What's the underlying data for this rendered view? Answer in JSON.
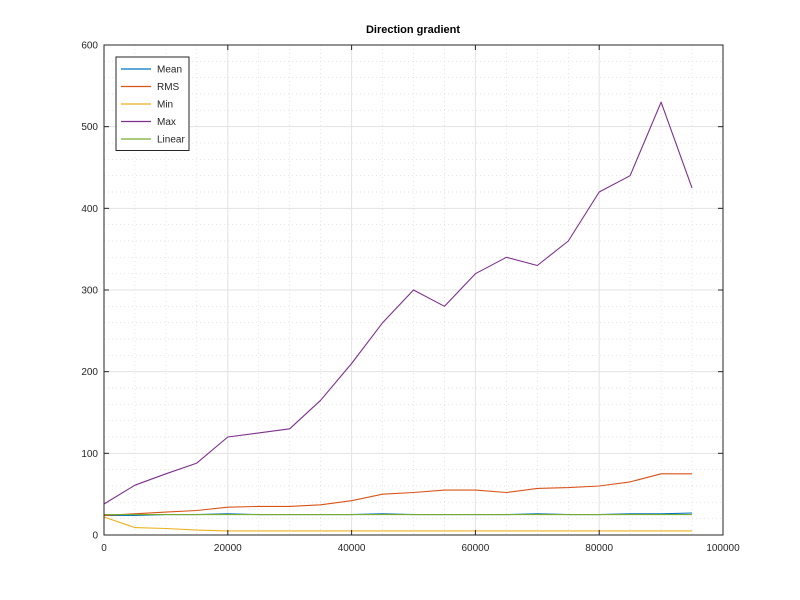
{
  "chart_data": {
    "type": "line",
    "title": "Direction gradient",
    "xlabel": "",
    "ylabel": "",
    "xlim": [
      0,
      100000
    ],
    "ylim": [
      0,
      600
    ],
    "x_ticks": [
      0,
      20000,
      40000,
      60000,
      80000,
      100000
    ],
    "y_ticks": [
      0,
      100,
      200,
      300,
      400,
      500,
      600
    ],
    "grid": true,
    "minor_grid": true,
    "legend_position": "top-left",
    "x": [
      0,
      5000,
      10000,
      15000,
      20000,
      25000,
      30000,
      35000,
      40000,
      45000,
      50000,
      55000,
      60000,
      65000,
      70000,
      75000,
      80000,
      85000,
      90000,
      95000
    ],
    "series": [
      {
        "name": "Mean",
        "color": "#0072bd",
        "values": [
          24,
          24,
          25,
          25,
          26,
          25,
          25,
          25,
          25,
          26,
          25,
          25,
          25,
          25,
          26,
          25,
          25,
          26,
          26,
          27
        ]
      },
      {
        "name": "RMS",
        "color": "#d95319",
        "values": [
          24,
          26,
          28,
          30,
          34,
          35,
          35,
          37,
          42,
          50,
          52,
          55,
          55,
          52,
          57,
          58,
          60,
          65,
          75,
          75
        ]
      },
      {
        "name": "Min",
        "color": "#edb120",
        "values": [
          22,
          9,
          8,
          6,
          5,
          5,
          5,
          5,
          5,
          5,
          5,
          5,
          5,
          5,
          5,
          5,
          5,
          5,
          5,
          5
        ]
      },
      {
        "name": "Max",
        "color": "#7e2f8e",
        "values": [
          38,
          61,
          75,
          88,
          120,
          125,
          130,
          165,
          210,
          260,
          300,
          280,
          320,
          340,
          330,
          360,
          420,
          440,
          530,
          425
        ]
      },
      {
        "name": "Linear",
        "color": "#77ac30",
        "values": [
          25,
          25,
          25,
          25,
          25,
          25,
          25,
          25,
          25,
          25,
          25,
          25,
          25,
          25,
          25,
          25,
          25,
          25,
          25,
          25
        ]
      }
    ]
  }
}
